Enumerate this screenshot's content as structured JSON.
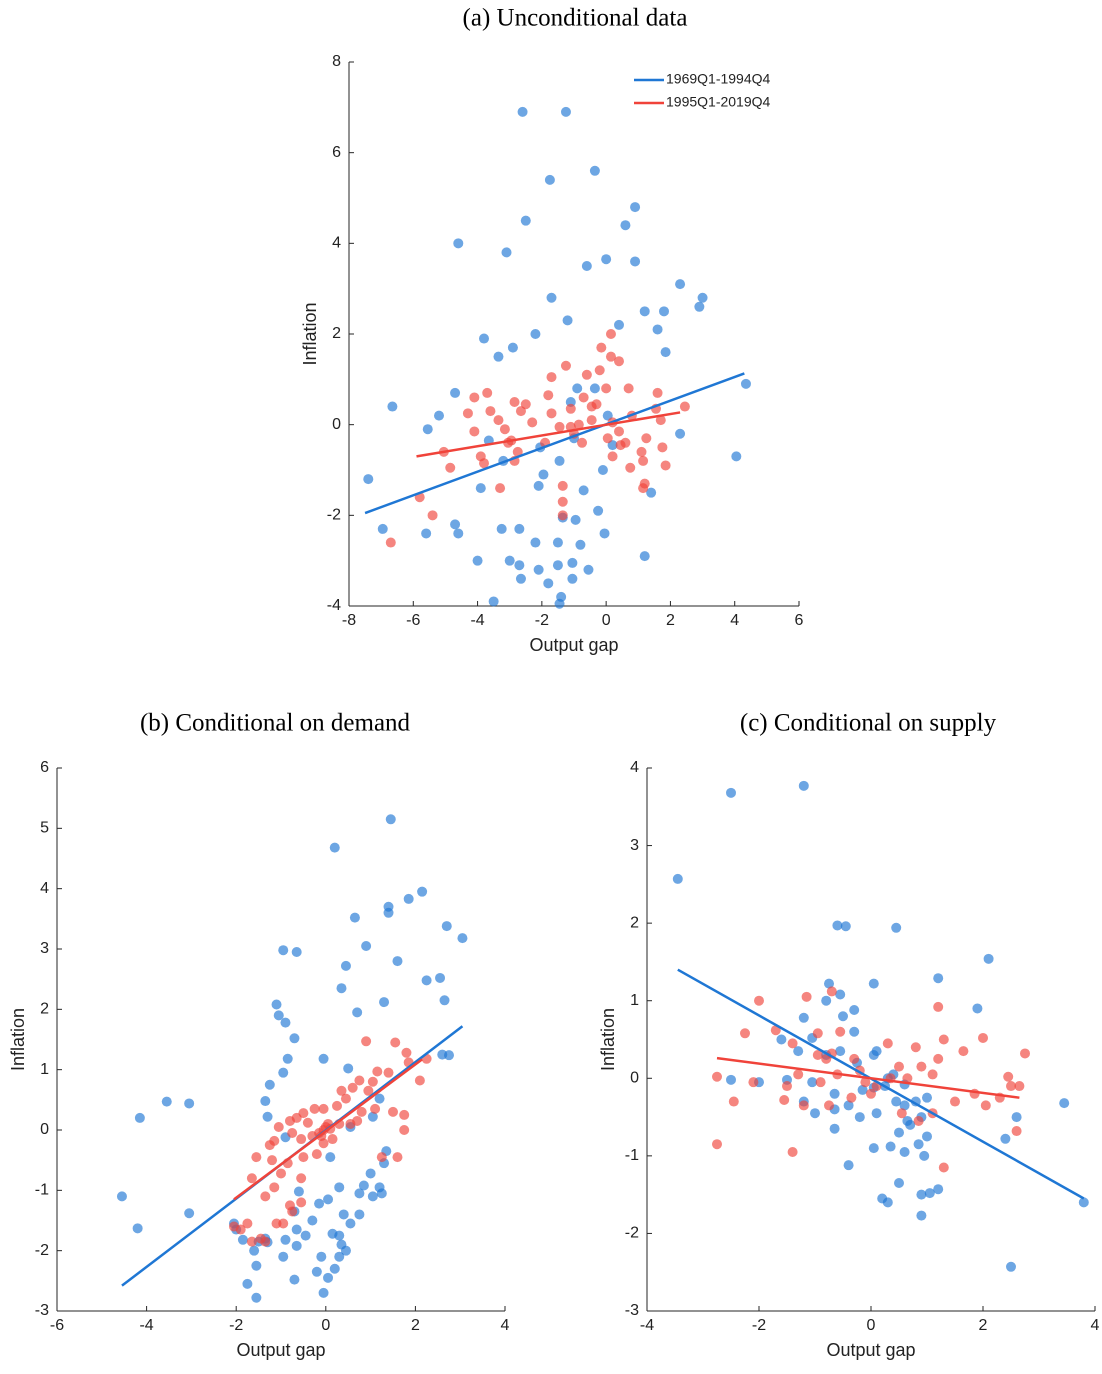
{
  "chart_data": [
    {
      "type": "scatter",
      "title": "(a) Unconditional data",
      "xlabel": "Output gap",
      "ylabel": "Inflation",
      "xlim": [
        -8,
        6
      ],
      "ylim": [
        -4,
        8
      ],
      "xticks": [
        -8,
        -6,
        -4,
        -2,
        0,
        2,
        4,
        6
      ],
      "yticks": [
        -4,
        -2,
        0,
        2,
        4,
        6,
        8
      ],
      "legend": "upper right",
      "series": [
        {
          "name": "1969Q1-1994Q4",
          "color": "#1f77d4",
          "x": [
            -2.6,
            -1.25,
            -1.75,
            -0.35,
            0.9,
            -2.5,
            0.6,
            -4.6,
            0,
            -3.1,
            -0.6,
            0.9,
            2.3,
            3.0,
            2.9,
            -1.7,
            -1.2,
            1.2,
            1.8,
            1.6,
            0.4,
            -3.8,
            -2.2,
            1.85,
            -2.9,
            -3.35,
            4.35,
            -4.7,
            -6.65,
            -5.2,
            -0.9,
            -1.1,
            -0.35,
            0.05,
            -5.55,
            2.3,
            -2.05,
            0.2,
            -3.2,
            4.05,
            -0.1,
            -7.4,
            -1.95,
            1.4,
            -3.9,
            -2.1,
            -0.7,
            -6.95,
            -5.6,
            -4.7,
            -4.6,
            -3.25,
            -2.7,
            -1.35,
            -0.95,
            -0.25,
            -0.05,
            -2.2,
            -1.5,
            -0.8,
            -4.0,
            -3.0,
            -2.7,
            -2.1,
            -1.5,
            -1.05,
            -0.55,
            1.2,
            -2.65,
            -1.8,
            -1.05,
            -3.5,
            -1.4,
            -1.45,
            -1.45,
            -1.0,
            -3.65
          ],
          "y": [
            6.9,
            6.9,
            5.4,
            5.6,
            4.8,
            4.5,
            4.4,
            4.0,
            3.65,
            3.8,
            3.5,
            3.6,
            3.1,
            2.8,
            2.6,
            2.8,
            2.3,
            2.5,
            2.5,
            2.1,
            2.2,
            1.9,
            2.0,
            1.6,
            1.7,
            1.5,
            0.9,
            0.7,
            0.4,
            0.2,
            0.8,
            0.5,
            0.8,
            0.2,
            -0.1,
            -0.2,
            -0.5,
            -0.45,
            -0.8,
            -0.7,
            -1.0,
            -1.2,
            -1.1,
            -1.5,
            -1.4,
            -1.35,
            -1.45,
            -2.3,
            -2.4,
            -2.2,
            -2.4,
            -2.3,
            -2.3,
            -2.05,
            -2.1,
            -1.9,
            -2.4,
            -2.6,
            -2.6,
            -2.65,
            -3.0,
            -3.0,
            -3.1,
            -3.2,
            -3.1,
            -3.05,
            -3.2,
            -2.9,
            -3.4,
            -3.5,
            -3.4,
            -3.9,
            -3.8,
            -3.95,
            -0.8,
            -0.3,
            -0.35
          ],
          "fit_x": [
            -7.5,
            4.3
          ],
          "fit_y": [
            -1.95,
            1.13
          ]
        },
        {
          "name": "1995Q1-2019Q4",
          "color": "#f0433a",
          "x": [
            -5.8,
            -5.4,
            -6.7,
            -5.05,
            -4.85,
            -4.1,
            -3.7,
            -4.3,
            -4.1,
            -3.6,
            -3.9,
            -3.8,
            -3.35,
            -3.15,
            -2.95,
            -3.05,
            -2.85,
            -2.65,
            -2.5,
            -2.75,
            -2.85,
            -3.3,
            -2.3,
            -1.9,
            -1.7,
            -1.8,
            -1.7,
            -1.45,
            -1.35,
            -1.35,
            -1.35,
            -1.25,
            -1.1,
            -1.1,
            -1.0,
            -0.85,
            -0.7,
            -0.6,
            -0.45,
            -0.3,
            -0.2,
            -0.15,
            0.0,
            0.15,
            0.15,
            0.4,
            0.2,
            0.05,
            0.2,
            0.4,
            0.45,
            0.6,
            0.7,
            0.8,
            0.75,
            1.1,
            1.25,
            1.15,
            1.2,
            1.15,
            1.6,
            1.55,
            1.7,
            1.85,
            1.75,
            2.45,
            -0.75,
            -0.45
          ],
          "y": [
            -1.6,
            -2.0,
            -2.6,
            -0.6,
            -0.95,
            0.6,
            0.7,
            0.25,
            -0.15,
            0.3,
            -0.7,
            -0.85,
            0.1,
            -0.1,
            -0.35,
            -0.4,
            0.5,
            0.3,
            0.45,
            -0.6,
            -0.8,
            -1.4,
            0.05,
            -0.4,
            0.25,
            0.65,
            1.05,
            -0.05,
            -1.35,
            -1.7,
            -2.0,
            1.3,
            0.35,
            -0.05,
            -0.2,
            0.0,
            0.6,
            1.1,
            0.4,
            0.45,
            1.2,
            1.7,
            0.8,
            2.0,
            1.5,
            1.4,
            0.05,
            -0.3,
            -0.7,
            -0.15,
            -0.45,
            -0.4,
            0.8,
            0.2,
            -0.95,
            -0.6,
            -0.3,
            -0.8,
            -1.3,
            -1.4,
            0.7,
            0.35,
            0.1,
            -0.9,
            -0.5,
            0.4,
            -0.4,
            0.1
          ],
          "fit_x": [
            -5.9,
            2.3
          ],
          "fit_y": [
            -0.7,
            0.27
          ]
        }
      ]
    },
    {
      "type": "scatter",
      "title": "(b) Conditional on demand",
      "xlabel": "Output gap",
      "ylabel": "Inflation",
      "xlim": [
        -6,
        4
      ],
      "ylim": [
        -3,
        6
      ],
      "xticks": [
        -6,
        -4,
        -2,
        0,
        2,
        4
      ],
      "yticks": [
        -3,
        -2,
        -1,
        0,
        1,
        2,
        3,
        4,
        5,
        6
      ],
      "series": [
        {
          "color": "#1f77d4",
          "x": [
            1.45,
            0.2,
            2.15,
            1.85,
            1.4,
            1.4,
            0.65,
            2.7,
            3.05,
            0.9,
            -0.95,
            -0.65,
            0.45,
            1.6,
            2.55,
            2.25,
            0.35,
            -1.1,
            -1.05,
            2.65,
            1.3,
            0.7,
            -0.9,
            -0.7,
            -0.85,
            -0.05,
            2.6,
            2.75,
            -4.55,
            -4.15,
            -3.55,
            -3.05,
            -4.2,
            -3.05,
            -1.25,
            -1.35,
            -1.3,
            -0.95,
            -0.9,
            0.5,
            1.2,
            1.05,
            0.55,
            0.1,
            1.35,
            1.3,
            1.0,
            0.85,
            0.75,
            1.2,
            1.25,
            0.3,
            0.05,
            -0.15,
            -0.6,
            -0.7,
            -0.3,
            0.4,
            0.75,
            1.05,
            0.55,
            -0.65,
            -0.45,
            -0.9,
            -1.35,
            -1.5,
            -1.3,
            -2.0,
            -2.05,
            -1.85,
            -1.6,
            -1.55,
            -0.95,
            -0.65,
            0.15,
            0.3,
            0.35,
            0.45,
            -0.1,
            0.2,
            -0.2,
            0.05,
            -0.7,
            -1.75,
            -1.55,
            -0.05,
            0.3
          ],
          "y": [
            5.15,
            4.68,
            3.95,
            3.83,
            3.7,
            3.6,
            3.52,
            3.38,
            3.18,
            3.05,
            2.98,
            2.95,
            2.72,
            2.8,
            2.52,
            2.48,
            2.35,
            2.08,
            1.9,
            2.15,
            2.12,
            1.95,
            1.78,
            1.52,
            1.18,
            1.18,
            1.25,
            1.24,
            -1.1,
            0.2,
            0.47,
            0.44,
            -1.63,
            -1.38,
            0.75,
            0.48,
            0.22,
            0.95,
            -0.12,
            1.02,
            0.52,
            0.22,
            0.05,
            -0.45,
            -0.35,
            -0.55,
            -0.72,
            -0.92,
            -1.05,
            -0.95,
            -1.05,
            -0.95,
            -1.15,
            -1.22,
            -1.02,
            -1.35,
            -1.5,
            -1.4,
            -1.4,
            -1.1,
            -1.55,
            -1.65,
            -1.75,
            -1.82,
            -1.8,
            -1.85,
            -1.86,
            -1.65,
            -1.55,
            -1.82,
            -2.0,
            -2.25,
            -2.1,
            -1.92,
            -1.72,
            -1.75,
            -1.9,
            -2.0,
            -2.1,
            -2.3,
            -2.35,
            -2.45,
            -2.48,
            -2.55,
            -2.78,
            -2.7,
            -2.1
          ],
          "fit_x": [
            -4.55,
            3.05
          ],
          "fit_y": [
            -2.58,
            1.72
          ]
        },
        {
          "color": "#f0433a",
          "x": [
            0.9,
            1.55,
            1.8,
            2.25,
            1.85,
            1.4,
            1.15,
            2.1,
            1.05,
            0.75,
            0.95,
            0.6,
            0.35,
            0.45,
            0.25,
            -0.05,
            -0.25,
            -0.5,
            -0.4,
            -0.65,
            -0.8,
            -1.05,
            -0.75,
            -0.55,
            -0.3,
            -0.1,
            0.1,
            0.15,
            0.3,
            0.55,
            0.7,
            0.8,
            1.1,
            1.5,
            1.75,
            1.75,
            1.6,
            1.25,
            -1.15,
            -1.25,
            -1.55,
            -1.2,
            -0.85,
            -0.5,
            -0.2,
            -0.05,
            -1.0,
            -0.55,
            -1.65,
            -1.15,
            -1.35,
            -0.8,
            -0.55,
            -0.75,
            -1.1,
            -1.75,
            -2.05,
            -1.9,
            -1.65,
            -1.45,
            -1.35,
            -0.95,
            -0.05,
            0.0,
            0.05,
            -0.15
          ],
          "y": [
            1.47,
            1.45,
            1.28,
            1.18,
            1.12,
            0.95,
            0.97,
            0.82,
            0.8,
            0.82,
            0.65,
            0.7,
            0.65,
            0.52,
            0.4,
            0.35,
            0.35,
            0.28,
            0.12,
            0.2,
            0.15,
            0.05,
            -0.05,
            -0.15,
            -0.1,
            -0.1,
            0.02,
            -0.15,
            0.1,
            0.1,
            0.15,
            0.3,
            0.35,
            0.3,
            0.25,
            0.0,
            -0.45,
            -0.45,
            -0.18,
            -0.25,
            -0.45,
            -0.5,
            -0.55,
            -0.45,
            -0.4,
            -0.22,
            -0.72,
            -0.8,
            -0.8,
            -0.95,
            -1.1,
            -1.25,
            -1.2,
            -1.35,
            -1.55,
            -1.55,
            -1.6,
            -1.65,
            -1.85,
            -1.8,
            -1.85,
            -1.55,
            0.0,
            0.05,
            0.1,
            -0.05
          ],
          "fit_x": [
            -2.05,
            2.15
          ],
          "fit_y": [
            -1.15,
            1.17
          ]
        }
      ]
    },
    {
      "type": "scatter",
      "title": "(c) Conditional on supply",
      "xlabel": "Output gap",
      "ylabel": "Inflation",
      "xlim": [
        -4,
        4
      ],
      "ylim": [
        -3,
        4
      ],
      "xticks": [
        -4,
        -2,
        0,
        2,
        4
      ],
      "yticks": [
        -3,
        -2,
        -1,
        0,
        1,
        2,
        3,
        4
      ],
      "series": [
        {
          "color": "#1f77d4",
          "x": [
            -3.45,
            -2.5,
            -1.2,
            -0.6,
            -0.45,
            0.45,
            2.1,
            1.2,
            0.05,
            -0.75,
            -0.55,
            -0.8,
            -0.3,
            -0.5,
            -1.2,
            1.9,
            -0.3,
            -1.05,
            -1.3,
            -1.6,
            -0.55,
            0.1,
            -0.8,
            -0.25,
            0.05,
            0.4,
            -1.5,
            -2.5,
            -2.0,
            -1.05,
            -0.65,
            -0.15,
            0.05,
            0.25,
            0.6,
            -1.2,
            -1.0,
            -0.65,
            -0.4,
            0.1,
            0.45,
            0.6,
            0.8,
            1.0,
            0.65,
            0.9,
            0.7,
            0.5,
            0.85,
            0.6,
            1.0,
            0.95,
            -0.4,
            0.05,
            0.35,
            0.5,
            0.2,
            0.3,
            0.9,
            1.05,
            1.2,
            0.9,
            2.4,
            2.6,
            3.45,
            3.8,
            2.5,
            -0.65,
            -0.2,
            0.3
          ],
          "y": [
            2.57,
            3.68,
            3.77,
            1.97,
            1.96,
            1.94,
            1.54,
            1.29,
            1.22,
            1.22,
            1.08,
            1.0,
            0.88,
            0.8,
            0.78,
            0.9,
            0.6,
            0.52,
            0.35,
            0.5,
            0.35,
            0.35,
            0.3,
            0.2,
            0.3,
            0.05,
            -0.02,
            -0.02,
            -0.05,
            -0.05,
            -0.2,
            -0.15,
            -0.12,
            -0.1,
            -0.08,
            -0.3,
            -0.45,
            -0.4,
            -0.35,
            -0.45,
            -0.3,
            -0.35,
            -0.3,
            -0.25,
            -0.55,
            -0.5,
            -0.6,
            -0.7,
            -0.85,
            -0.95,
            -0.75,
            -1.0,
            -1.12,
            -0.9,
            -0.88,
            -1.35,
            -1.55,
            -1.6,
            -1.5,
            -1.48,
            -1.43,
            -1.77,
            -0.78,
            -0.5,
            -0.32,
            -1.6,
            -2.43,
            -0.65,
            -0.5,
            0.0
          ],
          "fit_x": [
            -3.45,
            3.8
          ],
          "fit_y": [
            1.4,
            -1.55
          ]
        },
        {
          "color": "#f0433a",
          "x": [
            -2.0,
            -1.15,
            -0.7,
            1.2,
            -2.25,
            -1.7,
            -0.95,
            -0.55,
            -1.4,
            -0.95,
            -0.8,
            -0.7,
            -0.3,
            0.3,
            0.8,
            1.3,
            1.65,
            1.2,
            0.9,
            1.1,
            2.0,
            2.75,
            -2.75,
            -2.45,
            -2.1,
            -1.5,
            -1.3,
            -0.9,
            -0.6,
            -0.2,
            0.1,
            0.35,
            0.65,
            1.5,
            2.05,
            2.5,
            2.65,
            2.45,
            1.85,
            -2.75,
            -1.4,
            -1.2,
            -0.75,
            -0.35,
            0.0,
            0.55,
            0.85,
            1.1,
            1.3,
            2.6,
            2.3,
            -1.55,
            0.5,
            -0.1
          ],
          "y": [
            1.0,
            1.05,
            1.12,
            0.92,
            0.58,
            0.62,
            0.58,
            0.6,
            0.45,
            0.3,
            0.25,
            0.32,
            0.25,
            0.45,
            0.4,
            0.5,
            0.35,
            0.25,
            0.15,
            0.05,
            0.52,
            0.32,
            0.02,
            -0.3,
            -0.05,
            -0.1,
            0.05,
            -0.05,
            0.05,
            0.1,
            -0.1,
            0.0,
            0.0,
            -0.3,
            -0.35,
            -0.1,
            -0.1,
            0.02,
            -0.2,
            -0.85,
            -0.95,
            -0.35,
            -0.35,
            -0.25,
            -0.2,
            -0.45,
            -0.55,
            -0.45,
            -1.15,
            -0.68,
            -0.25,
            -0.28,
            0.15,
            -0.05
          ],
          "fit_x": [
            -2.75,
            2.65
          ],
          "fit_y": [
            0.26,
            -0.25
          ]
        }
      ]
    }
  ]
}
